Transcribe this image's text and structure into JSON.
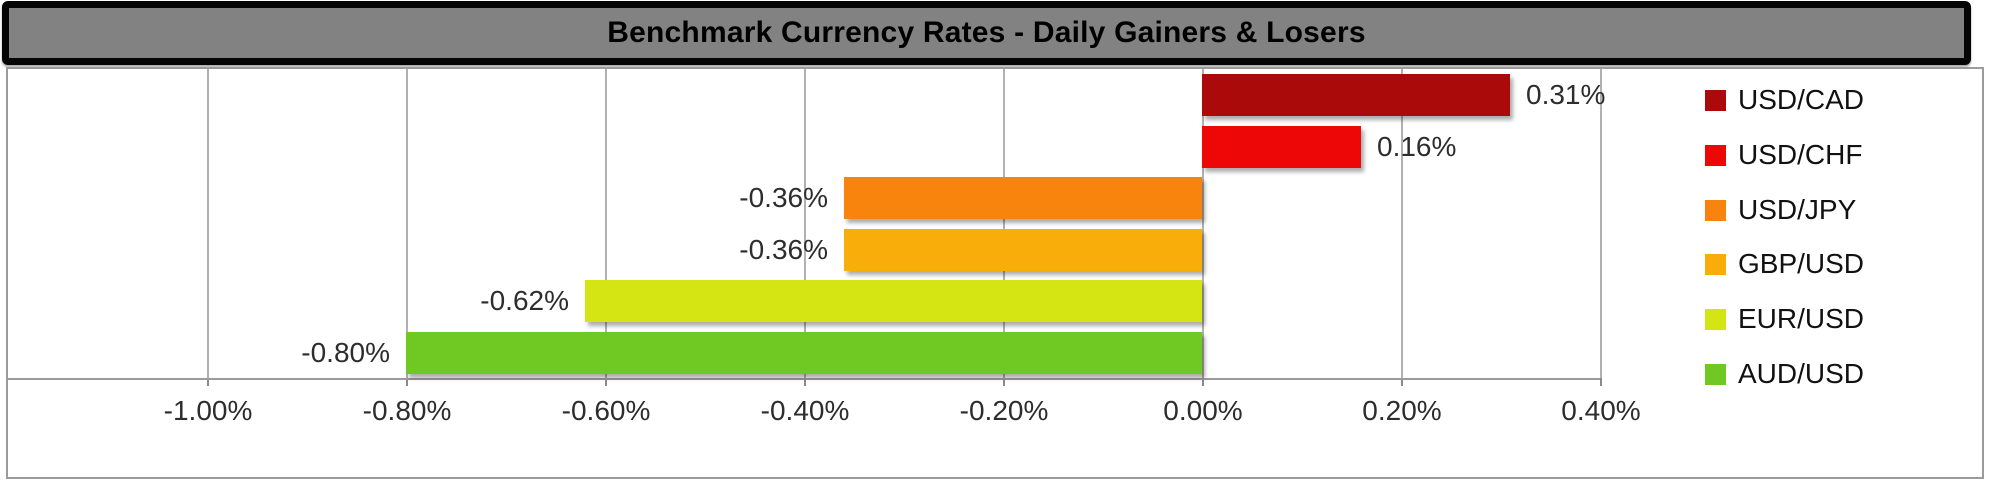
{
  "title_bar": {
    "text": "Benchmark Currency Rates - Daily Gainers & Losers"
  },
  "colors": {
    "title_bg": "#828282",
    "title_border": "#050505",
    "title_text": "#000000",
    "chart_border": "#9b9b9b",
    "gridline": "#b1b1b1",
    "axis_line": "#9b9b9b",
    "label_text": "#2d2d2d"
  },
  "chart_data": {
    "type": "bar",
    "orientation": "horizontal",
    "title": "Benchmark Currency Rates - Daily Gainers & Losers",
    "categories": [
      "USD/CAD",
      "USD/CHF",
      "USD/JPY",
      "GBP/USD",
      "EUR/USD",
      "AUD/USD"
    ],
    "values": [
      0.31,
      0.16,
      -0.36,
      -0.36,
      -0.62,
      -0.8
    ],
    "data_labels": [
      "0.31%",
      "0.16%",
      "-0.36%",
      "-0.36%",
      "-0.62%",
      "-0.80%"
    ],
    "bar_colors": [
      "#aa0a0a",
      "#ee0707",
      "#f8830d",
      "#f9ad0b",
      "#d5e513",
      "#70c822"
    ],
    "xlabel": "",
    "ylabel": "",
    "xlim": [
      -1.2,
      0.4
    ],
    "x_ticks": [
      {
        "value": -1.0,
        "label": "-1.00%"
      },
      {
        "value": -0.8,
        "label": "-0.80%"
      },
      {
        "value": -0.6,
        "label": "-0.60%"
      },
      {
        "value": -0.4,
        "label": "-0.40%"
      },
      {
        "value": -0.2,
        "label": "-0.20%"
      },
      {
        "value": 0.0,
        "label": "0.00%"
      },
      {
        "value": 0.2,
        "label": "0.20%"
      },
      {
        "value": 0.4,
        "label": "0.40%"
      }
    ],
    "grid": "vertical-on",
    "legend": {
      "position": "right",
      "entries": [
        {
          "label": "USD/CAD",
          "color": "#aa0a0a"
        },
        {
          "label": "USD/CHF",
          "color": "#ee0707"
        },
        {
          "label": "USD/JPY",
          "color": "#f8830d"
        },
        {
          "label": "GBP/USD",
          "color": "#f9ad0b"
        },
        {
          "label": "EUR/USD",
          "color": "#d5e513"
        },
        {
          "label": "AUD/USD",
          "color": "#70c822"
        }
      ]
    }
  }
}
